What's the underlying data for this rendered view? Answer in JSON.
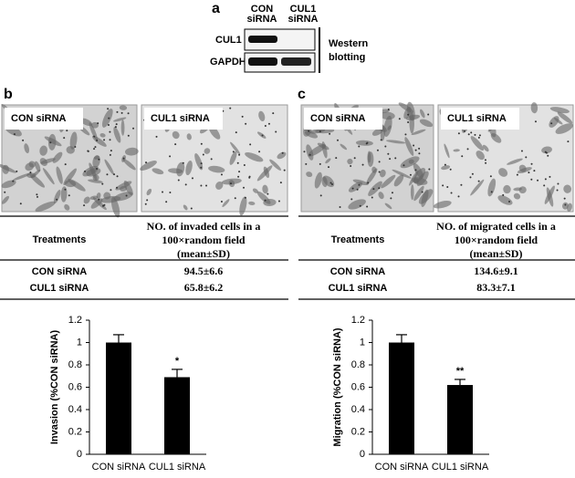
{
  "western": {
    "label": "a",
    "columns": [
      [
        "CON",
        "siRNA"
      ],
      [
        "CUL1",
        "siRNA"
      ]
    ],
    "rows": [
      "CUL1",
      "GAPDH"
    ],
    "caption": [
      "Western",
      "blotting"
    ]
  },
  "invasion": {
    "label": "b",
    "images": [
      "CON siRNA",
      "CUL1 siRNA"
    ],
    "table": {
      "header": [
        "Treatments",
        [
          "NO. of invaded cells in a",
          "100×random field",
          "(mean±SD)"
        ]
      ],
      "rows": [
        [
          "CON siRNA",
          "94.5±6.6"
        ],
        [
          "CUL1 siRNA",
          "65.8±6.2"
        ]
      ]
    }
  },
  "migration": {
    "label": "c",
    "images": [
      "CON siRNA",
      "CUL1 siRNA"
    ],
    "table": {
      "header": [
        "Treatments",
        [
          "NO. of migrated cells in a",
          "100×random field",
          "(mean±SD)"
        ]
      ],
      "rows": [
        [
          "CON siRNA",
          "134.6±9.1"
        ],
        [
          "CUL1 siRNA",
          "83.3±7.1"
        ]
      ]
    }
  },
  "chart_data": [
    {
      "type": "bar",
      "y_label": "Invasion (%CON siRNA)",
      "categories": [
        "CON siRNA",
        "CUL1 siRNA"
      ],
      "values": [
        1.0,
        0.69
      ],
      "errors": [
        0.07,
        0.07
      ],
      "color": "#000000",
      "annotations": [
        {
          "x": "CUL1 siRNA",
          "text": "*"
        }
      ],
      "ylim": [
        0,
        1.2
      ],
      "yticks": [
        0,
        0.2,
        0.4,
        0.6,
        0.8,
        1,
        1.2
      ]
    },
    {
      "type": "bar",
      "y_label": "Migration (%CON siRNA)",
      "categories": [
        "CON siRNA",
        "CUL1 siRNA"
      ],
      "values": [
        1.0,
        0.62
      ],
      "errors": [
        0.07,
        0.05
      ],
      "color": "#000000",
      "annotations": [
        {
          "x": "CUL1 siRNA",
          "text": "**"
        }
      ],
      "ylim": [
        0,
        1.2
      ],
      "yticks": [
        0,
        0.2,
        0.4,
        0.6,
        0.8,
        1,
        1.2
      ]
    }
  ]
}
